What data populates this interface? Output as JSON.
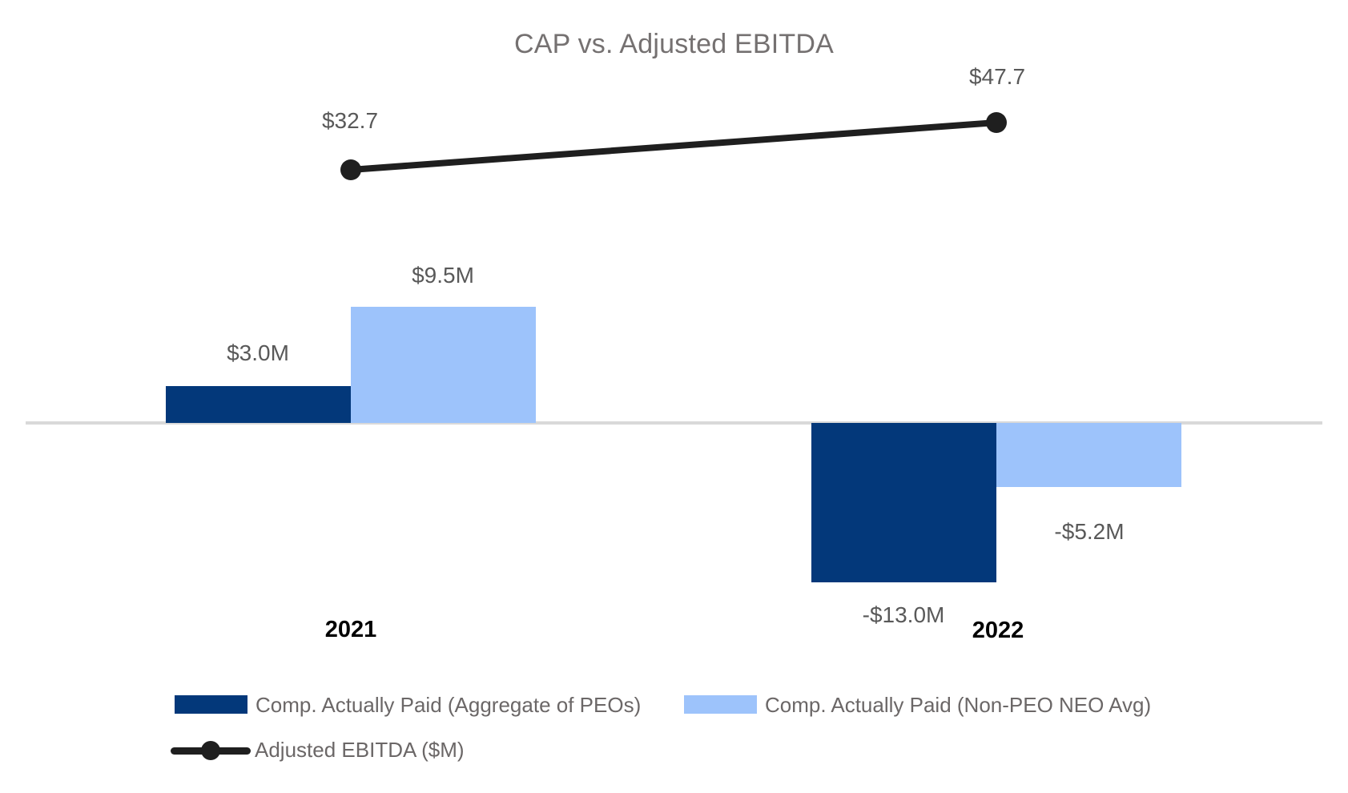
{
  "title": "CAP vs. Adjusted EBITDA",
  "chart_data": {
    "type": "combo",
    "title": "CAP vs. Adjusted EBITDA",
    "categories": [
      "2021",
      "2022"
    ],
    "series": [
      {
        "name": "Comp. Actually Paid (Aggregate of PEOs)",
        "type": "bar",
        "color": "#03387a",
        "values": [
          3.0,
          -13.0
        ],
        "data_labels": [
          "$3.0M",
          "-$13.0M"
        ]
      },
      {
        "name": "Comp. Actually Paid (Non-PEO NEO Avg)",
        "type": "bar",
        "color": "#9dc3fb",
        "values": [
          9.5,
          -5.2
        ],
        "data_labels": [
          "$9.5M",
          "-$5.2M"
        ]
      },
      {
        "name": "Adjusted EBITDA ($M)",
        "type": "line",
        "color": "#1f1f1f",
        "values": [
          32.7,
          47.7
        ],
        "data_labels": [
          "$32.7",
          "$47.7"
        ]
      }
    ],
    "xlabel": "",
    "ylabel": "",
    "grid": false,
    "legend_position": "bottom",
    "baseline_color": "#d9d9d9",
    "label_color": "#595959",
    "title_color": "#757171"
  }
}
